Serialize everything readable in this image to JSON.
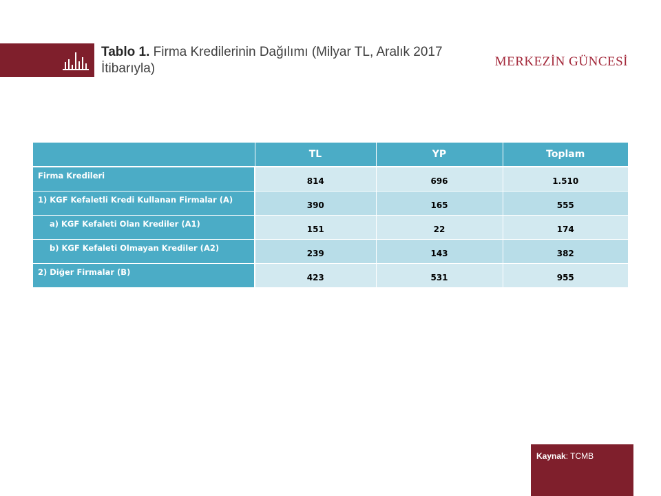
{
  "header": {
    "title_bold": "Tablo 1.",
    "title_rest": " Firma Kredilerinin  Dağılımı (Milyar TL, Aralık 2017 İtibarıyla)",
    "brand": "MERKEZİN GÜNCESİ",
    "icon": "bar-chart-icon"
  },
  "table": {
    "headers": [
      "",
      "TL",
      "YP",
      "Toplam"
    ],
    "rows": [
      {
        "label": "Firma Kredileri",
        "tl": "814",
        "yp": "696",
        "toplam": "1.510"
      },
      {
        "label": "1) KGF Kefaletli Kredi Kullanan Firmalar (A)",
        "tl": "390",
        "yp": "165",
        "toplam": "555"
      },
      {
        "label": "a) KGF Kefaleti Olan Krediler (A1)",
        "tl": "151",
        "yp": "22",
        "toplam": "174"
      },
      {
        "label": "b) KGF Kefaleti Olmayan Krediler (A2)",
        "tl": "239",
        "yp": "143",
        "toplam": "382"
      },
      {
        "label": "2) Diğer Firmalar (B)",
        "tl": "423",
        "yp": "531",
        "toplam": "955"
      }
    ]
  },
  "footer": {
    "source_label": "Kaynak",
    "source_sep": ": ",
    "source_value": "TCMB"
  },
  "colors": {
    "brand_red": "#7f1f2c",
    "brand_text": "#a3283a",
    "table_header": "#4bacc6",
    "row_light": "#d2e9f0",
    "row_dark": "#b8dde8"
  }
}
